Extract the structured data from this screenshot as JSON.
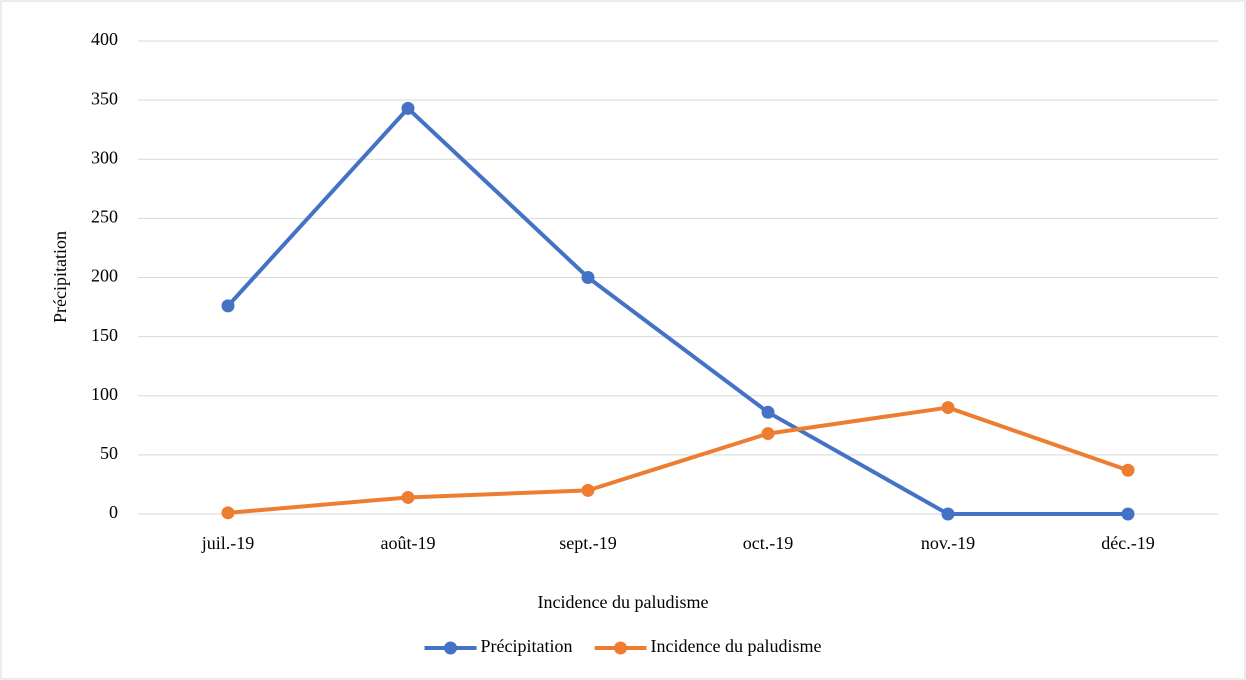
{
  "chart_data": {
    "type": "line",
    "xlabel": "Incidence du paludisme",
    "ylabel": "Précipitation",
    "categories": [
      "juil.-19",
      "août-19",
      "sept.-19",
      "oct.-19",
      "nov.-19",
      "déc.-19"
    ],
    "series": [
      {
        "name": "Précipitation",
        "color": "#4472c4",
        "values": [
          176,
          343,
          200,
          86,
          0,
          0
        ]
      },
      {
        "name": "Incidence du paludisme",
        "color": "#ed7d31",
        "values": [
          1,
          14,
          20,
          68,
          90,
          37
        ]
      }
    ],
    "ylim": [
      0,
      400
    ],
    "yticks": [
      0,
      50,
      100,
      150,
      200,
      250,
      300,
      350,
      400
    ],
    "grid": true,
    "legend": "bottom"
  }
}
